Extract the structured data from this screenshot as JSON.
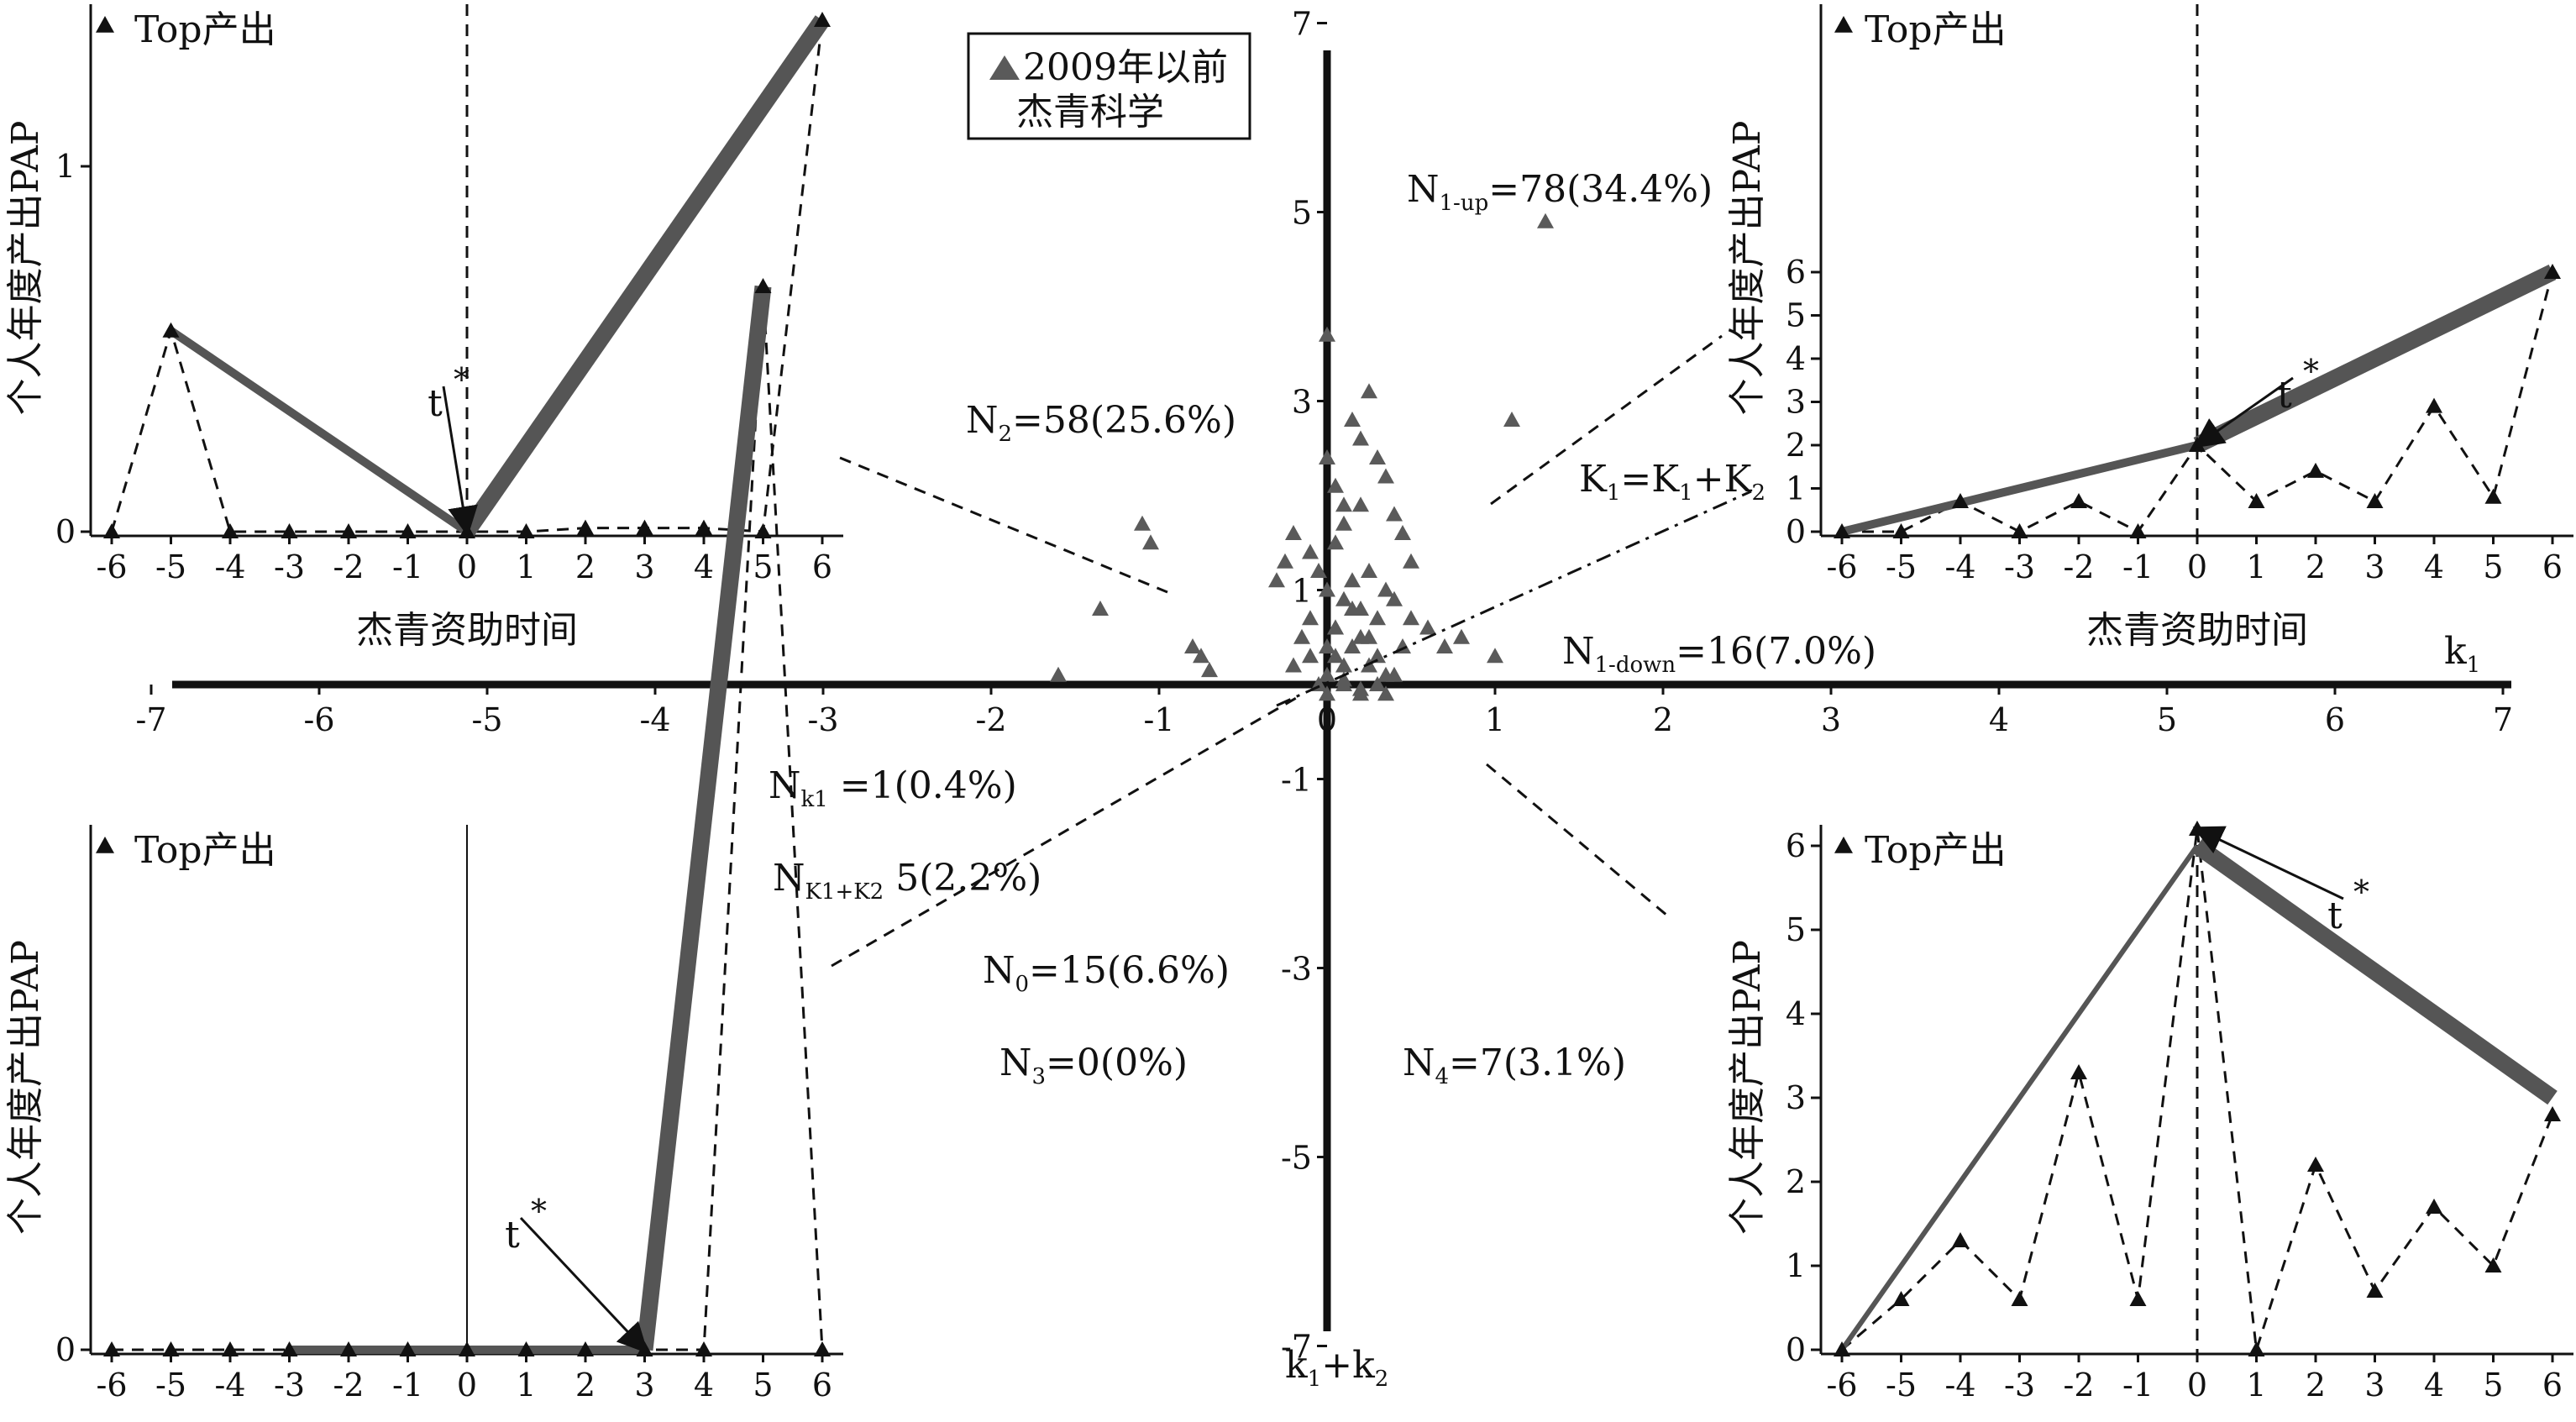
{
  "legend": {
    "line1": "2009年以前",
    "line2": "杰青科学"
  },
  "central": {
    "type": "scatter",
    "x_axis_label": "k",
    "x_axis_label_sub": "1",
    "y_axis_label_k1": "k",
    "y_axis_label_sub1": "1",
    "y_axis_label_plus": "+k",
    "y_axis_label_sub2": "2",
    "x_ticks": [
      "-7",
      "-6",
      "-5",
      "-4",
      "-3",
      "-2",
      "-1",
      "0",
      "1",
      "2",
      "3",
      "4",
      "5",
      "6",
      "7"
    ],
    "y_ticks": [
      "7",
      "5",
      "3",
      "1",
      "-1",
      "-3",
      "-5",
      "-7"
    ],
    "annotations": {
      "n1up": {
        "N": "N",
        "sub": "1-up",
        "text": "=78(34.4%)"
      },
      "n2": {
        "N": "N",
        "sub": "2",
        "text": "=58(25.6%)"
      },
      "k1line": {
        "K": "K",
        "sub1": "1",
        "mid": "=K",
        "sub2": "1",
        "tail": "+K",
        "sub3": "2"
      },
      "n1down": {
        "N": "N",
        "sub": "1-down",
        "text": "=16(7.0%)"
      },
      "nk1": {
        "N": "N",
        "sub": "k1",
        "text": " =1(0.4%)"
      },
      "nk1k2": {
        "N": "N",
        "sub": "K1+K2",
        "text": " 5(2.2%)"
      },
      "n0": {
        "N": "N",
        "sub": "0",
        "text": "=15(6.6%)"
      },
      "n3": {
        "N": "N",
        "sub": "3",
        "text": "=0(0%)"
      },
      "n4": {
        "N": "N",
        "sub": "4",
        "text": "=7(3.1%)"
      }
    }
  },
  "chart_data": [
    {
      "type": "scatter",
      "name": "central",
      "xlim": [
        -7,
        7
      ],
      "ylim": [
        -7,
        7
      ],
      "x": [
        1.3,
        1.1,
        -1.1,
        -1.05,
        -1.35,
        -1.6,
        -0.75,
        -0.7,
        -0.8,
        0.0,
        0.0,
        0.05,
        0.1,
        0.2,
        0.25,
        0.15,
        0.3,
        0.35,
        0.4,
        0.45,
        0.5,
        0.2,
        0.1,
        0.05,
        -0.05,
        -0.1,
        -0.2,
        -0.25,
        -0.3,
        0.0,
        0.1,
        0.2,
        0.3,
        0.15,
        0.25,
        0.35,
        0.05,
        -0.15,
        0.4,
        0.5,
        0.7,
        0.8,
        1.0,
        0.6,
        0.45,
        0.3,
        0.2,
        0.1,
        0.0,
        -0.1,
        -0.2,
        0.05,
        0.15,
        0.25,
        0.35,
        0.1,
        0.2,
        0.0,
        -0.05,
        0.4,
        0.3,
        0.2,
        0.1,
        0.15,
        0.05,
        -0.1,
        0.0,
        0.25,
        0.35
      ],
      "y": [
        4.9,
        2.8,
        1.7,
        1.5,
        0.8,
        0.1,
        0.3,
        0.15,
        0.4,
        3.7,
        2.4,
        2.1,
        1.9,
        2.6,
        3.1,
        2.8,
        2.4,
        2.2,
        1.8,
        1.6,
        1.3,
        1.9,
        1.7,
        1.5,
        1.2,
        1.4,
        1.6,
        1.3,
        1.1,
        1.0,
        0.9,
        0.8,
        0.7,
        1.1,
        1.2,
        1.0,
        0.6,
        0.5,
        0.9,
        0.7,
        0.4,
        0.5,
        0.3,
        0.6,
        0.4,
        0.3,
        0.5,
        0.2,
        0.1,
        0.3,
        0.2,
        0.6,
        0.4,
        0.2,
        0.1,
        0.0,
        -0.1,
        -0.1,
        0.0,
        0.1,
        0.0,
        -0.05,
        0.05,
        0.8,
        0.3,
        0.7,
        0.4,
        0.5,
        -0.1
      ]
    },
    {
      "type": "line",
      "name": "top-left",
      "x": [
        -6,
        -5,
        -4,
        -3,
        -2,
        -1,
        0,
        1,
        2,
        3,
        4,
        5,
        6
      ],
      "values": [
        0,
        0.55,
        0,
        0,
        0,
        0,
        0,
        0,
        0.01,
        0.01,
        0.01,
        0,
        1.4
      ],
      "yticks": [
        "0",
        "1"
      ],
      "xticks": [
        "-6",
        "-5",
        "-4",
        "-3",
        "-2",
        "-1",
        "0",
        "1",
        "2",
        "3",
        "4",
        "5",
        "6"
      ]
    },
    {
      "type": "line",
      "name": "top-right",
      "x": [
        -6,
        -5,
        -4,
        -3,
        -2,
        -1,
        0,
        1,
        2,
        3,
        4,
        5,
        6
      ],
      "values": [
        0,
        0,
        0.7,
        0,
        0.7,
        0,
        2,
        0.7,
        1.4,
        0.7,
        2.9,
        0.8,
        6
      ],
      "yticks": [
        "0",
        "1",
        "2",
        "3",
        "4",
        "5",
        "6"
      ],
      "xticks": [
        "-6",
        "-5",
        "-4",
        "-3",
        "-2",
        "-1",
        "0",
        "1",
        "2",
        "3",
        "4",
        "5",
        "6"
      ]
    },
    {
      "type": "line",
      "name": "bottom-left",
      "x": [
        -6,
        -5,
        -4,
        -3,
        -2,
        -1,
        0,
        1,
        2,
        3,
        4,
        5,
        6
      ],
      "values": [
        0,
        0,
        0,
        0,
        0,
        0,
        0,
        0,
        0,
        0,
        0,
        6,
        0
      ],
      "yticks": [
        "0"
      ],
      "xticks": [
        "-6",
        "-5",
        "-4",
        "-3",
        "-2",
        "-1",
        "0",
        "1",
        "2",
        "3",
        "4",
        "5",
        "6"
      ]
    },
    {
      "type": "line",
      "name": "bottom-right",
      "x": [
        -6,
        -5,
        -4,
        -3,
        -2,
        -1,
        0,
        1,
        2,
        3,
        4,
        5,
        6
      ],
      "values": [
        0,
        0.6,
        1.3,
        0.6,
        3.3,
        0.6,
        6.2,
        0,
        2.2,
        0.7,
        1.7,
        1,
        2.8
      ],
      "yticks": [
        "0",
        "1",
        "2",
        "3",
        "4",
        "5",
        "6"
      ],
      "xticks": [
        "-6",
        "-5",
        "-4",
        "-3",
        "-2",
        "-1",
        "0",
        "1",
        "2",
        "3",
        "4",
        "5",
        "6"
      ]
    }
  ],
  "panels": {
    "tl": {
      "top_label": "Top产出",
      "ylabel": "个人年度产出PAP",
      "xlabel": "杰青资助时间",
      "t": "t",
      "star": "*"
    },
    "tr": {
      "top_label": "Top产出",
      "ylabel": "个人年度产出PAP",
      "xlabel": "杰青资助时间",
      "t": "t",
      "star": "*"
    },
    "bl": {
      "top_label": "Top产出",
      "ylabel": "个人年度产出PAP",
      "t": "t",
      "star": "*"
    },
    "br": {
      "top_label": "Top产出",
      "ylabel": "个人年度产出PAP",
      "t": "t",
      "star": "*"
    }
  },
  "colors": {
    "thick_line": "#555555",
    "marker": "#111111",
    "scatter": "#5a5a5a"
  }
}
